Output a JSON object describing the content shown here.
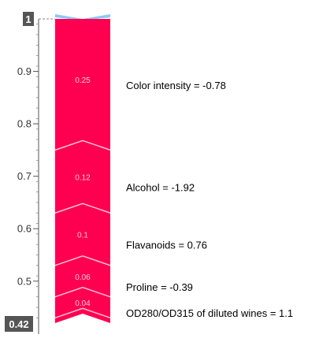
{
  "chart_data": {
    "type": "force-plot-vertical",
    "y_top_label": "1",
    "y_bottom_label": "0.42",
    "ylim": [
      0.42,
      1.0
    ],
    "ticks": [
      {
        "value": 0.9,
        "label": "0.9"
      },
      {
        "value": 0.8,
        "label": "0.8"
      },
      {
        "value": 0.7,
        "label": "0.7"
      },
      {
        "value": 0.6,
        "label": "0.6"
      },
      {
        "value": 0.5,
        "label": "0.5"
      }
    ],
    "segments": [
      {
        "from": 1.0,
        "to": 0.75,
        "label": "0.25",
        "feature": "Color intensity = -0.78"
      },
      {
        "from": 0.75,
        "to": 0.63,
        "label": "0.12",
        "feature": "Alcohol = -1.92"
      },
      {
        "from": 0.63,
        "to": 0.53,
        "label": "0.1",
        "feature": "Flavanoids = 0.76"
      },
      {
        "from": 0.53,
        "to": 0.47,
        "label": "0.06",
        "feature": "Proline = -0.39"
      },
      {
        "from": 0.47,
        "to": 0.43,
        "label": "0.04",
        "feature": "OD280/OD315 of diluted wines = 1.1"
      },
      {
        "from": 0.43,
        "to": 0.42,
        "label": "",
        "feature": ""
      }
    ],
    "colors": {
      "positive": "#ff0051",
      "divider": "#ffc3d5",
      "negative": "#8bc7f5",
      "axis": "#555555",
      "badge": "#555555"
    }
  }
}
